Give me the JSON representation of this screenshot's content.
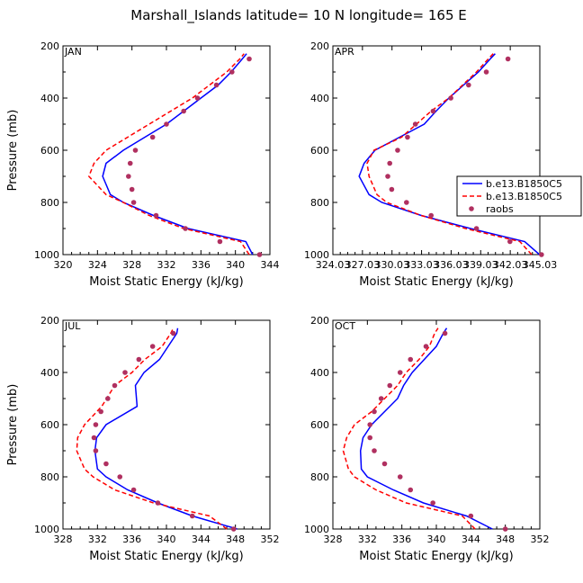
{
  "figure_title": "Marshall_Islands  latitude= 10 N longitude= 165 E",
  "legend": {
    "entries": [
      {
        "label": "b.e13.B1850C5",
        "style": "solid",
        "color": "#0000ff"
      },
      {
        "label": "b.e13.B1850C5",
        "style": "dashed",
        "color": "#ff0000"
      },
      {
        "label": "raobs",
        "style": "marker",
        "color": "#b03060"
      }
    ]
  },
  "chart_data": [
    {
      "type": "line",
      "title": "JAN",
      "xlabel": "Moist Static Energy (kJ/kg)",
      "ylabel": "Pressure (mb)",
      "xlim": [
        320,
        344
      ],
      "ylim": [
        1000,
        200
      ],
      "xticks": [
        "320",
        "324",
        "328",
        "332",
        "336",
        "340",
        "344"
      ],
      "yticks": [
        "200",
        "400",
        "600",
        "800",
        "1000"
      ],
      "pressure": [
        1000,
        950,
        900,
        850,
        800,
        770,
        700,
        650,
        600,
        550,
        500,
        450,
        400,
        350,
        300,
        250,
        230
      ],
      "series": [
        {
          "name": "b.e13.B1850C5 (solid)",
          "style": "solid",
          "color": "#0000ff",
          "values": [
            342.0,
            341.2,
            334.5,
            330.5,
            327.0,
            325.5,
            324.6,
            325.0,
            327.0,
            329.5,
            332.0,
            334.0,
            336.0,
            338.0,
            339.5,
            340.8,
            341.3
          ]
        },
        {
          "name": "b.e13.B1850C5 (dashed)",
          "style": "dashed",
          "color": "#ff0000",
          "values": [
            341.6,
            340.6,
            334.0,
            330.0,
            327.0,
            325.0,
            323.0,
            323.6,
            325.0,
            327.5,
            330.0,
            332.5,
            335.0,
            337.0,
            339.0,
            340.5,
            341.0
          ]
        },
        {
          "name": "raobs",
          "style": "marker",
          "color": "#b03060",
          "values": [
            342.8,
            338.2,
            334.2,
            330.8,
            328.2,
            328.0,
            327.6,
            327.8,
            328.4,
            330.4,
            332.0,
            334.0,
            335.6,
            337.8,
            339.6,
            341.6
          ]
        }
      ],
      "raobs_pressure": [
        1000,
        950,
        900,
        850,
        800,
        750,
        700,
        650,
        600,
        550,
        500,
        450,
        400,
        350,
        300,
        250
      ]
    },
    {
      "type": "line",
      "title": "APR",
      "xlabel": "Moist Static Energy (kJ/kg)",
      "ylabel": "",
      "xlim": [
        324.03,
        345.03
      ],
      "ylim": [
        1000,
        200
      ],
      "xticks": [
        "324.03",
        "327.03",
        "330.03",
        "333.03",
        "336.03",
        "339.03",
        "342.03",
        "345.03"
      ],
      "yticks": [
        "200",
        "400",
        "600",
        "800",
        "1000"
      ],
      "pressure": [
        1000,
        950,
        900,
        850,
        800,
        770,
        700,
        650,
        600,
        550,
        500,
        450,
        400,
        350,
        300,
        250,
        230
      ],
      "series": [
        {
          "name": "b.e13.B1850C5 (solid)",
          "style": "solid",
          "color": "#0000ff",
          "values": [
            345.0,
            343.5,
            338.0,
            333.0,
            329.0,
            327.7,
            326.7,
            327.2,
            328.3,
            330.8,
            333.3,
            334.5,
            335.8,
            337.3,
            338.8,
            340.0,
            340.5
          ]
        },
        {
          "name": "b.e13.B1850C5 (dashed)",
          "style": "dashed",
          "color": "#ff0000",
          "values": [
            344.2,
            343.0,
            337.5,
            333.0,
            329.5,
            328.5,
            327.7,
            327.5,
            328.2,
            331.0,
            332.5,
            334.0,
            335.8,
            337.2,
            338.6,
            339.8,
            340.3
          ]
        },
        {
          "name": "raobs",
          "style": "marker",
          "color": "#b03060",
          "values": [
            345.2,
            342.0,
            338.6,
            334.0,
            331.5,
            330.0,
            329.6,
            329.8,
            330.6,
            331.6,
            332.4,
            334.2,
            336.0,
            337.8,
            339.6,
            341.8
          ]
        }
      ],
      "raobs_pressure": [
        1000,
        950,
        900,
        850,
        800,
        750,
        700,
        650,
        600,
        550,
        500,
        450,
        400,
        350,
        300,
        250
      ]
    },
    {
      "type": "line",
      "title": "JUL",
      "xlabel": "Moist Static Energy (kJ/kg)",
      "ylabel": "Pressure (mb)",
      "xlim": [
        328,
        352
      ],
      "ylim": [
        1000,
        200
      ],
      "xticks": [
        "328",
        "332",
        "336",
        "340",
        "344",
        "348",
        "352"
      ],
      "yticks": [
        "200",
        "400",
        "600",
        "800",
        "1000"
      ],
      "pressure": [
        1000,
        950,
        900,
        850,
        800,
        770,
        700,
        650,
        600,
        530,
        450,
        400,
        350,
        300,
        250,
        230
      ],
      "series": [
        {
          "name": "b.e13.B1850C5 (solid)",
          "style": "solid",
          "color": "#0000ff",
          "values": [
            348.2,
            343.0,
            339.0,
            335.5,
            333.0,
            332.0,
            331.7,
            331.9,
            333.0,
            336.6,
            336.4,
            337.4,
            339.2,
            340.2,
            341.2,
            341.3
          ]
        },
        {
          "name": "b.e13.B1850C5 (dashed)",
          "style": "dashed",
          "color": "#ff0000",
          "values": [
            347.0,
            345.0,
            338.5,
            334.0,
            331.5,
            330.5,
            329.6,
            329.7,
            330.5,
            332.5,
            334.0,
            336.0,
            337.5,
            339.5,
            340.5,
            340.8
          ]
        },
        {
          "name": "raobs",
          "style": "marker",
          "color": "#b03060",
          "values": [
            347.8,
            343.0,
            339.0,
            336.2,
            334.6,
            333.0,
            331.8,
            331.6,
            331.8,
            332.4,
            333.2,
            334.0,
            335.2,
            336.8,
            338.4,
            340.8
          ]
        }
      ],
      "raobs_pressure": [
        1000,
        950,
        900,
        850,
        800,
        750,
        700,
        650,
        600,
        550,
        500,
        450,
        400,
        350,
        300,
        250
      ]
    },
    {
      "type": "line",
      "title": "OCT",
      "xlabel": "Moist Static Energy (kJ/kg)",
      "ylabel": "",
      "xlim": [
        328,
        352
      ],
      "ylim": [
        1000,
        200
      ],
      "xticks": [
        "328",
        "332",
        "336",
        "340",
        "344",
        "348",
        "352"
      ],
      "yticks": [
        "200",
        "400",
        "600",
        "800",
        "1000"
      ],
      "pressure": [
        1000,
        950,
        900,
        850,
        800,
        770,
        700,
        650,
        600,
        550,
        500,
        450,
        400,
        350,
        300,
        250,
        230
      ],
      "series": [
        {
          "name": "b.e13.B1850C5 (solid)",
          "style": "solid",
          "color": "#0000ff",
          "values": [
            346.5,
            343.5,
            338.5,
            335.0,
            332.0,
            331.3,
            331.2,
            331.5,
            332.5,
            334.0,
            335.5,
            336.2,
            337.2,
            338.6,
            340.0,
            340.8,
            341.2
          ]
        },
        {
          "name": "b.e13.B1850C5 (dashed)",
          "style": "dashed",
          "color": "#ff0000",
          "values": [
            344.5,
            343.0,
            336.5,
            333.0,
            330.5,
            329.8,
            329.2,
            329.6,
            330.5,
            332.5,
            334.0,
            335.5,
            336.5,
            338.0,
            339.2,
            339.8,
            340.2
          ]
        },
        {
          "name": "raobs",
          "style": "marker",
          "color": "#b03060",
          "values": [
            348.0,
            344.0,
            339.6,
            337.0,
            335.8,
            334.0,
            332.8,
            332.3,
            332.3,
            332.8,
            333.6,
            334.6,
            335.8,
            337.0,
            338.8,
            341.0
          ]
        }
      ],
      "raobs_pressure": [
        1000,
        950,
        900,
        850,
        800,
        750,
        700,
        650,
        600,
        550,
        500,
        450,
        400,
        350,
        300,
        250
      ]
    }
  ]
}
